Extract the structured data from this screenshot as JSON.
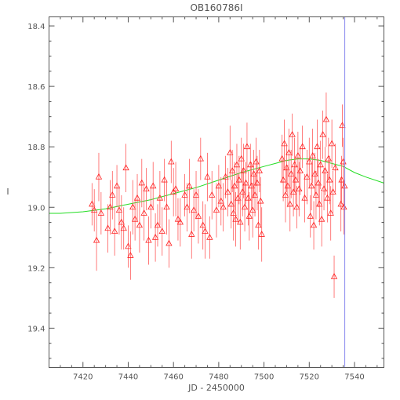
{
  "chart_data": {
    "type": "scatter",
    "title": "OB160786I",
    "xlabel": "JD - 2450000",
    "ylabel": "I",
    "xlim": [
      7405,
      7553
    ],
    "ylim": [
      19.53,
      18.37
    ],
    "y_inverted": true,
    "xticks": [
      7420,
      7440,
      7460,
      7480,
      7500,
      7520,
      7540
    ],
    "yticks": [
      18.4,
      18.6,
      18.8,
      19.0,
      19.2,
      19.4
    ],
    "grid": false,
    "legend": "none",
    "colors": {
      "points": "#ff2020",
      "errorbars": "#ff5a5a",
      "model": "#22dd22",
      "marker_line": "#8888ee",
      "axes": "#555555"
    },
    "series": [
      {
        "marker": "triangle-open",
        "points": [
          {
            "x": 7424,
            "y": 18.99,
            "err": 0.07
          },
          {
            "x": 7425,
            "y": 19.01,
            "err": 0.07
          },
          {
            "x": 7426,
            "y": 19.11,
            "err": 0.1
          },
          {
            "x": 7427,
            "y": 18.9,
            "err": 0.08
          },
          {
            "x": 7428,
            "y": 19.02,
            "err": 0.07
          },
          {
            "x": 7431,
            "y": 19.07,
            "err": 0.08
          },
          {
            "x": 7432,
            "y": 19.0,
            "err": 0.09
          },
          {
            "x": 7433,
            "y": 18.96,
            "err": 0.08
          },
          {
            "x": 7434,
            "y": 19.08,
            "err": 0.08
          },
          {
            "x": 7435,
            "y": 18.93,
            "err": 0.07
          },
          {
            "x": 7436,
            "y": 19.01,
            "err": 0.08
          },
          {
            "x": 7437,
            "y": 19.05,
            "err": 0.09
          },
          {
            "x": 7438,
            "y": 19.07,
            "err": 0.07
          },
          {
            "x": 7439,
            "y": 18.87,
            "err": 0.08
          },
          {
            "x": 7440,
            "y": 19.13,
            "err": 0.07
          },
          {
            "x": 7441,
            "y": 19.16,
            "err": 0.08
          },
          {
            "x": 7442,
            "y": 19.0,
            "err": 0.09
          },
          {
            "x": 7443,
            "y": 19.04,
            "err": 0.07
          },
          {
            "x": 7444,
            "y": 18.97,
            "err": 0.08
          },
          {
            "x": 7445,
            "y": 19.06,
            "err": 0.09
          },
          {
            "x": 7446,
            "y": 18.92,
            "err": 0.08
          },
          {
            "x": 7447,
            "y": 19.02,
            "err": 0.09
          },
          {
            "x": 7448,
            "y": 18.94,
            "err": 0.07
          },
          {
            "x": 7449,
            "y": 19.11,
            "err": 0.08
          },
          {
            "x": 7450,
            "y": 19.0,
            "err": 0.07
          },
          {
            "x": 7451,
            "y": 18.93,
            "err": 0.08
          },
          {
            "x": 7452,
            "y": 19.1,
            "err": 0.08
          },
          {
            "x": 7453,
            "y": 19.06,
            "err": 0.07
          },
          {
            "x": 7454,
            "y": 18.97,
            "err": 0.09
          },
          {
            "x": 7455,
            "y": 19.08,
            "err": 0.08
          },
          {
            "x": 7456,
            "y": 18.91,
            "err": 0.07
          },
          {
            "x": 7457,
            "y": 19.0,
            "err": 0.09
          },
          {
            "x": 7458,
            "y": 19.12,
            "err": 0.08
          },
          {
            "x": 7459,
            "y": 18.85,
            "err": 0.07
          },
          {
            "x": 7460,
            "y": 18.95,
            "err": 0.08
          },
          {
            "x": 7461,
            "y": 18.94,
            "err": 0.09
          },
          {
            "x": 7462,
            "y": 19.04,
            "err": 0.07
          },
          {
            "x": 7463,
            "y": 19.05,
            "err": 0.08
          },
          {
            "x": 7465,
            "y": 18.96,
            "err": 0.07
          },
          {
            "x": 7466,
            "y": 19.0,
            "err": 0.08
          },
          {
            "x": 7467,
            "y": 18.93,
            "err": 0.09
          },
          {
            "x": 7468,
            "y": 19.09,
            "err": 0.08
          },
          {
            "x": 7469,
            "y": 19.01,
            "err": 0.07
          },
          {
            "x": 7470,
            "y": 18.96,
            "err": 0.08
          },
          {
            "x": 7471,
            "y": 19.03,
            "err": 0.09
          },
          {
            "x": 7472,
            "y": 18.84,
            "err": 0.07
          },
          {
            "x": 7473,
            "y": 19.06,
            "err": 0.08
          },
          {
            "x": 7474,
            "y": 19.08,
            "err": 0.09
          },
          {
            "x": 7475,
            "y": 18.9,
            "err": 0.08
          },
          {
            "x": 7476,
            "y": 19.1,
            "err": 0.07
          },
          {
            "x": 7477,
            "y": 18.96,
            "err": 0.08
          },
          {
            "x": 7479,
            "y": 19.01,
            "err": 0.09
          },
          {
            "x": 7480,
            "y": 18.93,
            "err": 0.07
          },
          {
            "x": 7481,
            "y": 18.98,
            "err": 0.08
          },
          {
            "x": 7482,
            "y": 19.0,
            "err": 0.08
          },
          {
            "x": 7483,
            "y": 18.9,
            "err": 0.07
          },
          {
            "x": 7484,
            "y": 18.95,
            "err": 0.08
          },
          {
            "x": 7485,
            "y": 18.82,
            "err": 0.09
          },
          {
            "x": 7485.5,
            "y": 18.99,
            "err": 0.08
          },
          {
            "x": 7486,
            "y": 18.88,
            "err": 0.07
          },
          {
            "x": 7486.5,
            "y": 19.02,
            "err": 0.09
          },
          {
            "x": 7487,
            "y": 18.93,
            "err": 0.08
          },
          {
            "x": 7487.5,
            "y": 19.04,
            "err": 0.09
          },
          {
            "x": 7488,
            "y": 18.86,
            "err": 0.07
          },
          {
            "x": 7488.5,
            "y": 18.97,
            "err": 0.08
          },
          {
            "x": 7489,
            "y": 18.91,
            "err": 0.08
          },
          {
            "x": 7489.5,
            "y": 19.05,
            "err": 0.09
          },
          {
            "x": 7490,
            "y": 18.84,
            "err": 0.07
          },
          {
            "x": 7490.5,
            "y": 18.95,
            "err": 0.08
          },
          {
            "x": 7491,
            "y": 18.88,
            "err": 0.09
          },
          {
            "x": 7491.5,
            "y": 19.0,
            "err": 0.08
          },
          {
            "x": 7492,
            "y": 18.92,
            "err": 0.07
          },
          {
            "x": 7492.5,
            "y": 18.8,
            "err": 0.08
          },
          {
            "x": 7493,
            "y": 18.97,
            "err": 0.09
          },
          {
            "x": 7493.5,
            "y": 19.03,
            "err": 0.08
          },
          {
            "x": 7494,
            "y": 18.86,
            "err": 0.07
          },
          {
            "x": 7494.5,
            "y": 18.93,
            "err": 0.08
          },
          {
            "x": 7495,
            "y": 19.01,
            "err": 0.09
          },
          {
            "x": 7495.5,
            "y": 18.89,
            "err": 0.08
          },
          {
            "x": 7496,
            "y": 18.96,
            "err": 0.07
          },
          {
            "x": 7496.5,
            "y": 18.85,
            "err": 0.08
          },
          {
            "x": 7497,
            "y": 18.92,
            "err": 0.09
          },
          {
            "x": 7497.5,
            "y": 19.06,
            "err": 0.08
          },
          {
            "x": 7498,
            "y": 18.88,
            "err": 0.07
          },
          {
            "x": 7498.5,
            "y": 18.98,
            "err": 0.08
          },
          {
            "x": 7499,
            "y": 19.09,
            "err": 0.09
          },
          {
            "x": 7508,
            "y": 18.84,
            "err": 0.08
          },
          {
            "x": 7508.5,
            "y": 18.91,
            "err": 0.07
          },
          {
            "x": 7509,
            "y": 18.79,
            "err": 0.08
          },
          {
            "x": 7509.5,
            "y": 18.96,
            "err": 0.09
          },
          {
            "x": 7510,
            "y": 18.87,
            "err": 0.08
          },
          {
            "x": 7510.5,
            "y": 18.93,
            "err": 0.07
          },
          {
            "x": 7511,
            "y": 18.82,
            "err": 0.08
          },
          {
            "x": 7511.5,
            "y": 18.99,
            "err": 0.09
          },
          {
            "x": 7512,
            "y": 18.89,
            "err": 0.08
          },
          {
            "x": 7512.5,
            "y": 18.76,
            "err": 0.07
          },
          {
            "x": 7513,
            "y": 18.95,
            "err": 0.08
          },
          {
            "x": 7513.5,
            "y": 18.86,
            "err": 0.09
          },
          {
            "x": 7514,
            "y": 18.91,
            "err": 0.08
          },
          {
            "x": 7514.5,
            "y": 19.0,
            "err": 0.07
          },
          {
            "x": 7515,
            "y": 18.83,
            "err": 0.08
          },
          {
            "x": 7515.5,
            "y": 18.94,
            "err": 0.09
          },
          {
            "x": 7516,
            "y": 18.88,
            "err": 0.08
          },
          {
            "x": 7517,
            "y": 18.8,
            "err": 0.07
          },
          {
            "x": 7518,
            "y": 18.97,
            "err": 0.08
          },
          {
            "x": 7519,
            "y": 18.9,
            "err": 0.09
          },
          {
            "x": 7520,
            "y": 18.85,
            "err": 0.08
          },
          {
            "x": 7520.5,
            "y": 19.03,
            "err": 0.07
          },
          {
            "x": 7521,
            "y": 18.93,
            "err": 0.08
          },
          {
            "x": 7521.5,
            "y": 18.83,
            "err": 0.09
          },
          {
            "x": 7522,
            "y": 19.06,
            "err": 0.08
          },
          {
            "x": 7522.5,
            "y": 18.89,
            "err": 0.07
          },
          {
            "x": 7523,
            "y": 18.96,
            "err": 0.08
          },
          {
            "x": 7523.5,
            "y": 18.8,
            "err": 0.09
          },
          {
            "x": 7524,
            "y": 18.92,
            "err": 0.08
          },
          {
            "x": 7524.5,
            "y": 18.99,
            "err": 0.07
          },
          {
            "x": 7525,
            "y": 18.86,
            "err": 0.08
          },
          {
            "x": 7525.5,
            "y": 19.04,
            "err": 0.09
          },
          {
            "x": 7526,
            "y": 18.76,
            "err": 0.08
          },
          {
            "x": 7526.5,
            "y": 18.94,
            "err": 0.07
          },
          {
            "x": 7527,
            "y": 18.88,
            "err": 0.08
          },
          {
            "x": 7527.5,
            "y": 18.71,
            "err": 0.09
          },
          {
            "x": 7528,
            "y": 18.97,
            "err": 0.08
          },
          {
            "x": 7528.5,
            "y": 18.84,
            "err": 0.07
          },
          {
            "x": 7529,
            "y": 18.91,
            "err": 0.08
          },
          {
            "x": 7529.5,
            "y": 19.02,
            "err": 0.09
          },
          {
            "x": 7530,
            "y": 18.79,
            "err": 0.08
          },
          {
            "x": 7530.5,
            "y": 18.95,
            "err": 0.07
          },
          {
            "x": 7531,
            "y": 19.23,
            "err": 0.07
          },
          {
            "x": 7531.5,
            "y": 18.87,
            "err": 0.08
          },
          {
            "x": 7534,
            "y": 18.99,
            "err": 0.09
          },
          {
            "x": 7534.3,
            "y": 18.91,
            "err": 0.08
          },
          {
            "x": 7534.6,
            "y": 18.73,
            "err": 0.07
          },
          {
            "x": 7535,
            "y": 18.85,
            "err": 0.08
          },
          {
            "x": 7535.3,
            "y": 19.0,
            "err": 0.09
          },
          {
            "x": 7535.6,
            "y": 18.93,
            "err": 0.08
          }
        ]
      }
    ],
    "model_curve": {
      "x": [
        7405,
        7410,
        7420,
        7430,
        7440,
        7450,
        7460,
        7470,
        7480,
        7490,
        7500,
        7505,
        7510,
        7515,
        7520,
        7525,
        7530,
        7535,
        7540,
        7545,
        7553
      ],
      "y": [
        19.02,
        19.02,
        19.015,
        19.005,
        18.99,
        18.975,
        18.955,
        18.935,
        18.91,
        18.885,
        18.865,
        18.855,
        18.845,
        18.84,
        18.84,
        18.845,
        18.855,
        18.865,
        18.885,
        18.9,
        18.92
      ]
    },
    "vertical_line_x": 7535.7
  }
}
